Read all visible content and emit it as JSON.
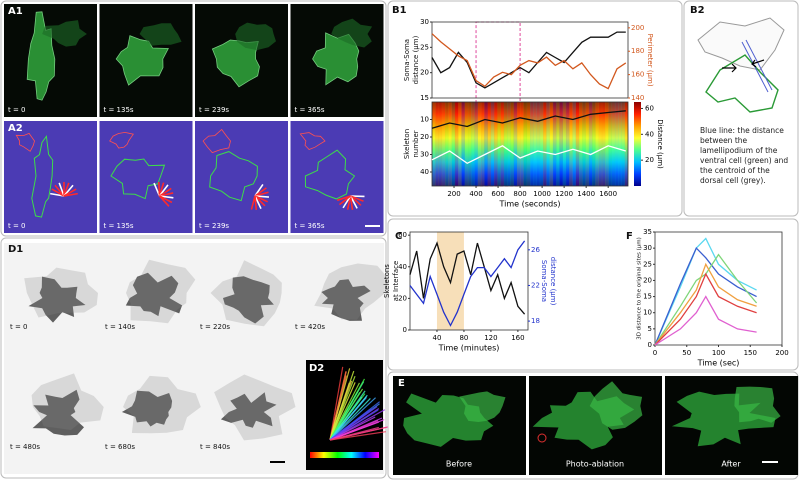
{
  "panels": {
    "A1": {
      "label": "A1",
      "times": [
        "t = 0",
        "t = 135s",
        "t = 239s",
        "t = 365s"
      ]
    },
    "A2": {
      "label": "A2",
      "times": [
        "t = 0",
        "t = 135s",
        "t = 239s",
        "t = 365s"
      ]
    },
    "B1": {
      "label": "B1"
    },
    "B2": {
      "label": "B2",
      "caption": "Blue line: the distance between the lamellipodium of the ventral cell (green) and the centroid of the dorsal cell (grey)."
    },
    "C": {
      "label": "C"
    },
    "F": {
      "label": "F"
    },
    "D1": {
      "label": "D1",
      "times": [
        "t = 0",
        "t = 140s",
        "t = 220s",
        "t = 420s",
        "t = 480s",
        "t = 680s",
        "t = 840s"
      ]
    },
    "D2": {
      "label": "D2"
    },
    "E": {
      "label": "E",
      "captions": [
        "Before",
        "Photo-ablation",
        "After"
      ]
    }
  },
  "chart_data": [
    {
      "type": "line",
      "y_label": [
        "Soma-Soma",
        "distance (μm)"
      ],
      "y2_label": "Perimeter (μm)",
      "x": [
        0,
        80,
        160,
        240,
        320,
        400,
        480,
        560,
        640,
        720,
        800,
        880,
        960,
        1040,
        1120,
        1200,
        1280,
        1360,
        1440,
        1520,
        1600,
        1680,
        1760
      ],
      "xlim": [
        0,
        1780
      ],
      "ylim": [
        15,
        30
      ],
      "yticks": [
        15,
        20,
        25,
        30
      ],
      "y2lim": [
        140,
        205
      ],
      "y2ticks": [
        140,
        160,
        180,
        200
      ],
      "highlight": [
        400,
        800
      ],
      "highlight_color": "#e0489c",
      "highlight_style": "dashed",
      "series": [
        {
          "color": "#111111",
          "values": [
            23,
            20,
            21,
            24,
            22,
            18,
            17,
            18,
            19,
            20,
            21,
            20,
            22,
            24,
            23,
            22,
            24,
            26,
            27,
            27,
            27,
            28,
            28
          ]
        },
        {
          "color": "#d2581e",
          "axis": "y2",
          "values": [
            195,
            188,
            182,
            176,
            172,
            155,
            150,
            158,
            162,
            160,
            168,
            172,
            170,
            175,
            168,
            172,
            165,
            170,
            160,
            152,
            148,
            165,
            170
          ]
        }
      ]
    },
    {
      "type": "line",
      "y_label": [
        "Skeleton",
        "number"
      ],
      "x_label": "Time (seconds)",
      "x": [
        0,
        160,
        320,
        480,
        640,
        800,
        960,
        1120,
        1280,
        1440,
        1600,
        1760
      ],
      "xlim": [
        0,
        1780
      ],
      "xticks": [
        200,
        400,
        600,
        800,
        1000,
        1200,
        1400,
        1600
      ],
      "ylim": [
        48,
        0
      ],
      "yticks": [
        10,
        20,
        30,
        40
      ],
      "colorbar": {
        "lim": [
          0,
          65
        ],
        "ticks": [
          20,
          40,
          60
        ],
        "label": "Distance (μm)"
      },
      "series": [
        {
          "color": "#111111",
          "values": [
            15,
            12,
            14,
            10,
            12,
            9,
            11,
            8,
            10,
            7,
            6,
            5
          ]
        },
        {
          "color": "#ffffff",
          "values": [
            33,
            28,
            35,
            30,
            25,
            32,
            28,
            30,
            27,
            30,
            25,
            28
          ]
        }
      ]
    },
    {
      "type": "line",
      "y_label": [
        "Skeletons",
        "at Interface"
      ],
      "y2_label": [
        "Soma-Soma",
        "distance (μm)"
      ],
      "x_label": "Time (minutes)",
      "x": [
        0,
        10,
        20,
        30,
        40,
        50,
        60,
        70,
        80,
        90,
        100,
        110,
        120,
        130,
        140,
        150,
        160,
        170
      ],
      "xlim": [
        0,
        175
      ],
      "xticks": [
        40,
        80,
        120,
        160
      ],
      "ylim": [
        0,
        62
      ],
      "yticks": [
        0,
        20,
        40,
        60
      ],
      "y2lim": [
        17,
        28
      ],
      "y2ticks": [
        18,
        22,
        26
      ],
      "highlight": [
        40,
        80
      ],
      "highlight_color": "#f5d7a8",
      "highlight_style": "fill",
      "series": [
        {
          "color": "#111111",
          "values": [
            35,
            50,
            20,
            45,
            55,
            40,
            30,
            48,
            50,
            35,
            55,
            40,
            25,
            35,
            20,
            30,
            15,
            10
          ]
        },
        {
          "color": "#2233cc",
          "axis": "y2",
          "values": [
            22,
            21,
            20,
            23,
            21,
            19,
            17.5,
            19,
            21,
            23,
            24,
            24,
            23,
            24,
            25,
            24,
            26,
            27
          ]
        }
      ]
    },
    {
      "type": "line",
      "y_label": "3D distance to the original sites (μm)",
      "x_label": "Time (sec)",
      "x": [
        0,
        40,
        65,
        80,
        100,
        130,
        160
      ],
      "xlim": [
        0,
        200
      ],
      "xticks": [
        0,
        50,
        100,
        150,
        200
      ],
      "ylim": [
        0,
        35
      ],
      "yticks": [
        0,
        5,
        10,
        15,
        20,
        25,
        30,
        35
      ],
      "series": [
        {
          "color": "#5ad8f0",
          "values": [
            0,
            18,
            30,
            33,
            25,
            20,
            17
          ]
        },
        {
          "color": "#3a5fd0",
          "values": [
            0,
            19,
            30,
            27,
            22,
            18,
            15
          ]
        },
        {
          "color": "#7fd67a",
          "values": [
            0,
            12,
            20,
            22,
            28,
            20,
            13
          ]
        },
        {
          "color": "#f0a040",
          "values": [
            0,
            10,
            17,
            25,
            18,
            14,
            12
          ]
        },
        {
          "color": "#e04040",
          "values": [
            0,
            8,
            15,
            22,
            15,
            12,
            10
          ]
        },
        {
          "color": "#e060d0",
          "values": [
            0,
            5,
            10,
            15,
            8,
            5,
            4
          ]
        }
      ]
    }
  ]
}
